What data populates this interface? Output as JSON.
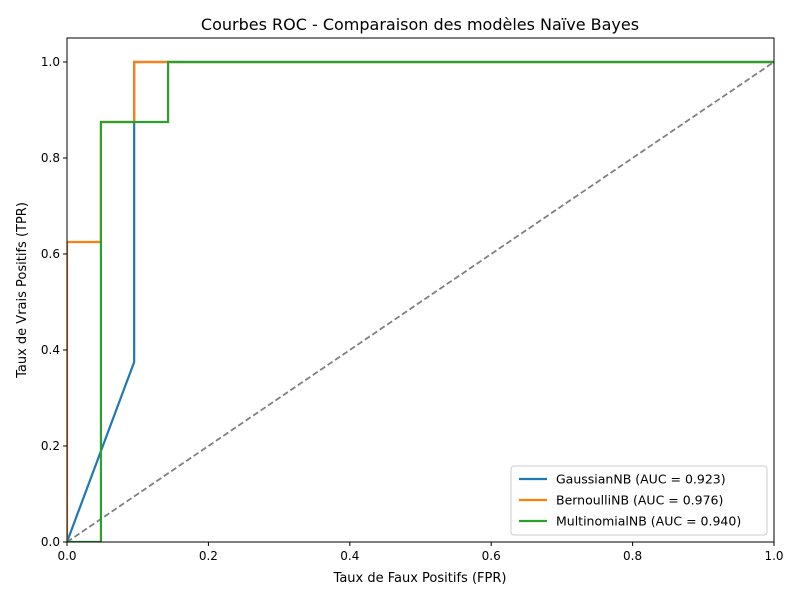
{
  "chart_data": {
    "type": "line",
    "title": "Courbes ROC - Comparaison des modèles Naïve Bayes",
    "xlabel": "Taux de Faux Positifs (FPR)",
    "ylabel": "Taux de Vrais Positifs (TPR)",
    "xlim": [
      0.0,
      1.0
    ],
    "ylim": [
      0.0,
      1.05
    ],
    "x_ticks": [
      "0.0",
      "0.2",
      "0.4",
      "0.6",
      "0.8",
      "1.0"
    ],
    "y_ticks": [
      "0.0",
      "0.2",
      "0.4",
      "0.6",
      "0.8",
      "1.0"
    ],
    "grid": false,
    "legend_position": "lower-right",
    "series": [
      {
        "name": "GaussianNB (AUC = 0.923)",
        "color": "#1f77b4",
        "x": [
          0.0,
          0.095,
          0.095,
          0.095,
          1.0
        ],
        "y": [
          0.0,
          0.375,
          0.875,
          1.0,
          1.0
        ]
      },
      {
        "name": "BernoulliNB (AUC = 0.976)",
        "color": "#ff7f0e",
        "x": [
          0.0,
          0.0,
          0.048,
          0.048,
          0.095,
          0.095,
          1.0
        ],
        "y": [
          0.0,
          0.625,
          0.625,
          0.875,
          0.875,
          1.0,
          1.0
        ]
      },
      {
        "name": "MultinomialNB (AUC = 0.940)",
        "color": "#2ca02c",
        "x": [
          0.0,
          0.048,
          0.048,
          0.143,
          0.143,
          1.0
        ],
        "y": [
          0.0,
          0.0,
          0.875,
          0.875,
          1.0,
          1.0
        ]
      }
    ],
    "reference_line": {
      "color": "#808080",
      "style": "dashed",
      "x": [
        0.0,
        1.0
      ],
      "y": [
        0.0,
        1.0
      ]
    },
    "extra_segment": {
      "color": "#d62728",
      "x": [
        0.0,
        0.0
      ],
      "y": [
        0.0,
        0.625
      ]
    }
  }
}
